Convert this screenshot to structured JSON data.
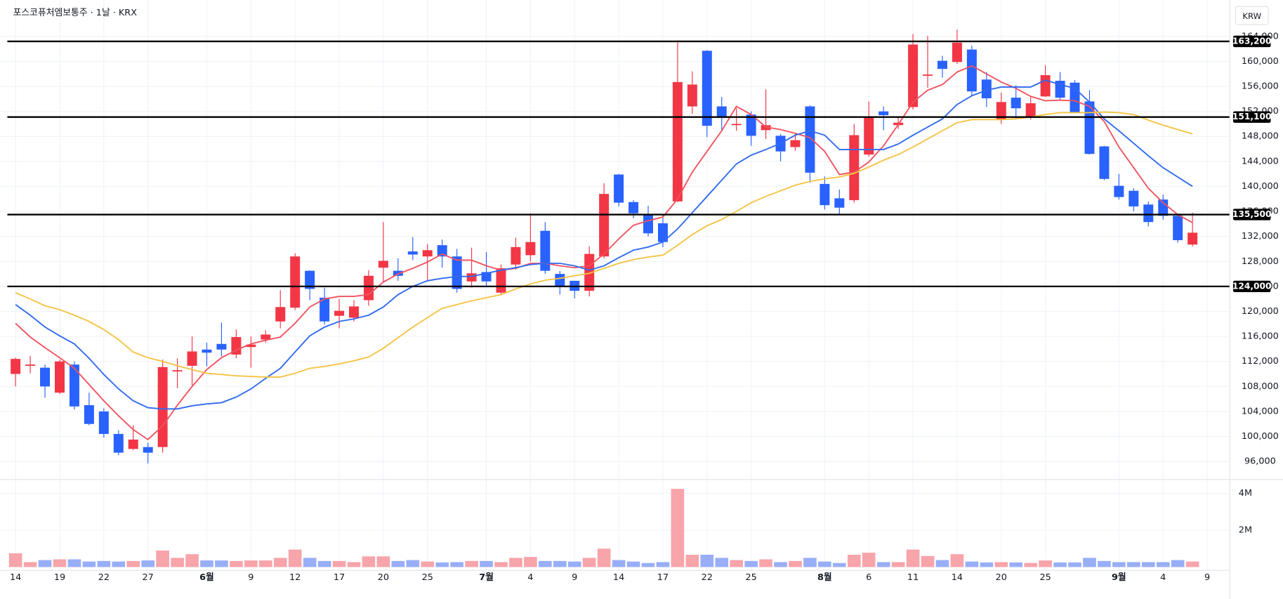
{
  "chart_data": {
    "type": "candlestick",
    "title": "포스코퓨처엠보통주 · 1날 · KRX",
    "currency_button": "KRW",
    "categories": [
      "14",
      null,
      null,
      "19",
      null,
      null,
      "22",
      null,
      null,
      "27",
      null,
      null,
      null,
      "6월",
      null,
      null,
      "9",
      null,
      null,
      "12",
      null,
      null,
      "17",
      null,
      null,
      "20",
      null,
      null,
      "25",
      null,
      null,
      null,
      "7월",
      null,
      null,
      "4",
      null,
      null,
      "9",
      null,
      null,
      "14",
      null,
      null,
      "17",
      null,
      null,
      "22",
      null,
      null,
      "25",
      null,
      null,
      null,
      null,
      "8월",
      null,
      null,
      "6",
      null,
      null,
      "11",
      null,
      null,
      "14",
      null,
      null,
      "20",
      null,
      null,
      "25",
      null,
      null,
      null,
      null,
      "9월",
      null,
      null,
      "4",
      null,
      null,
      "9"
    ],
    "open": [
      110000,
      111300,
      111000,
      107000,
      111500,
      105000,
      104000,
      100400,
      98000,
      98300,
      98300,
      110400,
      111300,
      113900,
      114800,
      113100,
      114300,
      115500,
      118400,
      120600,
      126500,
      122200,
      119300,
      119000,
      121800,
      127000,
      126500,
      129600,
      128800,
      130600,
      128800,
      124800,
      126300,
      123000,
      127500,
      129000,
      132900,
      126000,
      124900,
      123300,
      128800,
      141900,
      137500,
      135500,
      134100,
      137600,
      152800,
      161700,
      152800,
      149800,
      151500,
      149000,
      148100,
      146300,
      152800,
      140400,
      138100,
      137800,
      145100,
      152000,
      149800,
      152700,
      157700,
      160100,
      159900,
      161900,
      157100,
      150700,
      154200,
      151100,
      154400,
      156900,
      156600,
      153600,
      146400,
      140100,
      139300,
      137100,
      137900,
      135300,
      130700,
      null
    ],
    "high": [
      112600,
      112900,
      111500,
      112300,
      112000,
      107000,
      104500,
      101000,
      101800,
      99000,
      112300,
      112500,
      116000,
      115000,
      118200,
      117100,
      116000,
      117000,
      123400,
      129300,
      126600,
      123800,
      122000,
      121800,
      126600,
      134300,
      128500,
      131900,
      130800,
      131500,
      130000,
      130200,
      129500,
      127500,
      131800,
      135700,
      134300,
      126500,
      124900,
      130400,
      140500,
      142000,
      137800,
      136900,
      135400,
      163400,
      158400,
      161800,
      154300,
      152500,
      152000,
      155500,
      148400,
      148600,
      153000,
      141600,
      139500,
      150000,
      153600,
      152800,
      151000,
      164400,
      164100,
      160900,
      165100,
      162500,
      158300,
      155000,
      156200,
      154300,
      159400,
      158300,
      157000,
      155400,
      146500,
      142000,
      139700,
      137600,
      138700,
      135500,
      135800,
      null
    ],
    "low": [
      108000,
      110100,
      106200,
      106800,
      104300,
      101800,
      99800,
      97000,
      97800,
      95700,
      97400,
      107700,
      108200,
      111200,
      112800,
      112500,
      111000,
      115000,
      117300,
      120200,
      121800,
      117900,
      117300,
      118400,
      120900,
      124700,
      124900,
      128200,
      125000,
      127000,
      123000,
      123800,
      124100,
      122700,
      126700,
      128000,
      126000,
      122700,
      122100,
      122400,
      128500,
      136800,
      134900,
      132000,
      130300,
      137500,
      151600,
      147900,
      148900,
      148900,
      146500,
      147600,
      144000,
      145700,
      140600,
      136300,
      135600,
      137400,
      144800,
      149000,
      149200,
      152300,
      155800,
      157400,
      159600,
      154500,
      152700,
      150000,
      150800,
      150700,
      154300,
      153900,
      151800,
      145100,
      141000,
      137900,
      136000,
      133600,
      134700,
      131000,
      130400,
      null
    ],
    "close": [
      112400,
      111500,
      108000,
      112000,
      104800,
      102000,
      100400,
      97400,
      99500,
      97400,
      111100,
      110600,
      113600,
      113400,
      113900,
      115900,
      114700,
      116300,
      120700,
      128800,
      123600,
      118400,
      120100,
      120800,
      125700,
      128100,
      125700,
      129100,
      129800,
      128800,
      123600,
      126100,
      124800,
      126900,
      130300,
      131100,
      126500,
      124100,
      123300,
      129200,
      138800,
      137400,
      135700,
      132500,
      131100,
      156700,
      156300,
      149700,
      151100,
      150000,
      148100,
      149800,
      145600,
      147400,
      142200,
      137000,
      136600,
      148200,
      151000,
      151400,
      150200,
      162700,
      157900,
      158800,
      163000,
      155200,
      154100,
      153500,
      152500,
      153300,
      157800,
      154200,
      151900,
      145200,
      141200,
      138300,
      136800,
      134300,
      135300,
      131400,
      132600,
      null
    ],
    "volume": [
      750000,
      270000,
      380000,
      420000,
      420000,
      300000,
      330000,
      300000,
      330000,
      360000,
      900000,
      500000,
      700000,
      360000,
      360000,
      330000,
      360000,
      360000,
      500000,
      950000,
      500000,
      330000,
      330000,
      270000,
      580000,
      580000,
      330000,
      380000,
      300000,
      250000,
      270000,
      330000,
      330000,
      270000,
      500000,
      550000,
      330000,
      330000,
      300000,
      500000,
      1000000,
      380000,
      300000,
      220000,
      270000,
      4250000,
      670000,
      670000,
      500000,
      380000,
      330000,
      420000,
      270000,
      330000,
      500000,
      300000,
      220000,
      670000,
      780000,
      270000,
      270000,
      950000,
      600000,
      380000,
      700000,
      300000,
      250000,
      270000,
      250000,
      220000,
      360000,
      250000,
      250000,
      500000,
      330000,
      270000,
      270000,
      270000,
      270000,
      380000,
      300000,
      null
    ],
    "moving_averages": [
      {
        "color": "#f0525e",
        "values": [
          118100,
          115900,
          114200,
          112600,
          110900,
          108300,
          105700,
          103300,
          101100,
          99500,
          101700,
          105000,
          108000,
          110700,
          112600,
          113800,
          114800,
          115400,
          115900,
          118100,
          120700,
          122000,
          122400,
          122400,
          122700,
          124700,
          126000,
          126900,
          127900,
          129200,
          128200,
          128200,
          127300,
          126600,
          126900,
          127700,
          127700,
          127300,
          127000,
          127300,
          129200,
          131600,
          133800,
          134500,
          135100,
          138000,
          142300,
          145600,
          148900,
          152800,
          151500,
          149500,
          149100,
          148500,
          147800,
          145600,
          141900,
          142300,
          143900,
          146500,
          149900,
          153500,
          155400,
          156300,
          158300,
          159300,
          158000,
          156700,
          155700,
          154400,
          153700,
          153800,
          153700,
          152800,
          150400,
          146300,
          143000,
          139700,
          137400,
          135500,
          134200,
          null
        ]
      },
      {
        "color": "#2f6af0",
        "values": [
          121100,
          119400,
          117500,
          116100,
          114800,
          112500,
          109900,
          107600,
          105700,
          104600,
          104400,
          104400,
          104900,
          105200,
          105400,
          106300,
          107600,
          109300,
          110900,
          113500,
          116100,
          117500,
          118400,
          118800,
          119400,
          120700,
          122700,
          124000,
          124900,
          125300,
          125600,
          125600,
          126100,
          126600,
          127000,
          127500,
          127700,
          127700,
          127300,
          126600,
          127300,
          128600,
          129800,
          130300,
          131100,
          133200,
          135800,
          138400,
          141000,
          143600,
          145000,
          145900,
          146900,
          148200,
          148900,
          148200,
          145900,
          145900,
          145900,
          145900,
          146800,
          148200,
          149500,
          150800,
          153100,
          154500,
          155400,
          155900,
          155900,
          155900,
          157000,
          156300,
          155700,
          153500,
          150800,
          148900,
          146900,
          144900,
          143000,
          141500,
          140000,
          null
        ]
      },
      {
        "color": "#f5c342",
        "values": [
          123000,
          122000,
          120900,
          120300,
          119400,
          118400,
          117100,
          115500,
          113500,
          112600,
          112000,
          111300,
          110700,
          110100,
          109900,
          109700,
          109600,
          109500,
          109500,
          110100,
          110900,
          111200,
          111600,
          112100,
          112700,
          114100,
          115800,
          117500,
          119000,
          120500,
          121100,
          121700,
          122200,
          122700,
          123600,
          124400,
          125000,
          125300,
          125700,
          126100,
          126900,
          127700,
          128300,
          128700,
          129000,
          130600,
          132300,
          133700,
          134700,
          136000,
          137400,
          138400,
          139300,
          140200,
          140800,
          141200,
          141500,
          142100,
          143100,
          144200,
          145100,
          146300,
          147600,
          148900,
          150200,
          150700,
          150700,
          150700,
          150800,
          151100,
          151500,
          151800,
          151800,
          151800,
          151900,
          151800,
          151500,
          150600,
          149800,
          149100,
          148400,
          null
        ]
      }
    ],
    "price_lines": [
      {
        "value": 163200,
        "label": "163,200"
      },
      {
        "value": 151100,
        "label": "151,100"
      },
      {
        "value": 135500,
        "label": "135,500"
      },
      {
        "value": 124000,
        "label": "124,000"
      }
    ],
    "up_color": "#f23645",
    "down_color": "#2962ff",
    "volume_up_color": "#f7a4aa",
    "volume_down_color": "#98aef7",
    "ylim": [
      93240,
      169820
    ],
    "yticks": [
      {
        "value": 96000,
        "label": "96,000"
      },
      {
        "value": 100000,
        "label": "100,000"
      },
      {
        "value": 104000,
        "label": "104,000"
      },
      {
        "value": 108000,
        "label": "108,000"
      },
      {
        "value": 112000,
        "label": "112,000"
      },
      {
        "value": 116000,
        "label": "116,000"
      },
      {
        "value": 120000,
        "label": "120,000"
      },
      {
        "value": 124000,
        "label": "124,000"
      },
      {
        "value": 128000,
        "label": "128,000"
      },
      {
        "value": 132000,
        "label": "132,000"
      },
      {
        "value": 136000,
        "label": "136,000"
      },
      {
        "value": 140000,
        "label": "140,000"
      },
      {
        "value": 144000,
        "label": "144,000"
      },
      {
        "value": 148000,
        "label": "148,000"
      },
      {
        "value": 152000,
        "label": "152,000"
      },
      {
        "value": 156000,
        "label": "156,000"
      },
      {
        "value": 160000,
        "label": "160,000"
      },
      {
        "value": 164000,
        "label": "164,000"
      }
    ],
    "volume_ylim": [
      0,
      4700000
    ],
    "volume_yticks": [
      {
        "value": 2000000,
        "label": "2M"
      },
      {
        "value": 4000000,
        "label": "4M"
      }
    ],
    "grid": true
  }
}
